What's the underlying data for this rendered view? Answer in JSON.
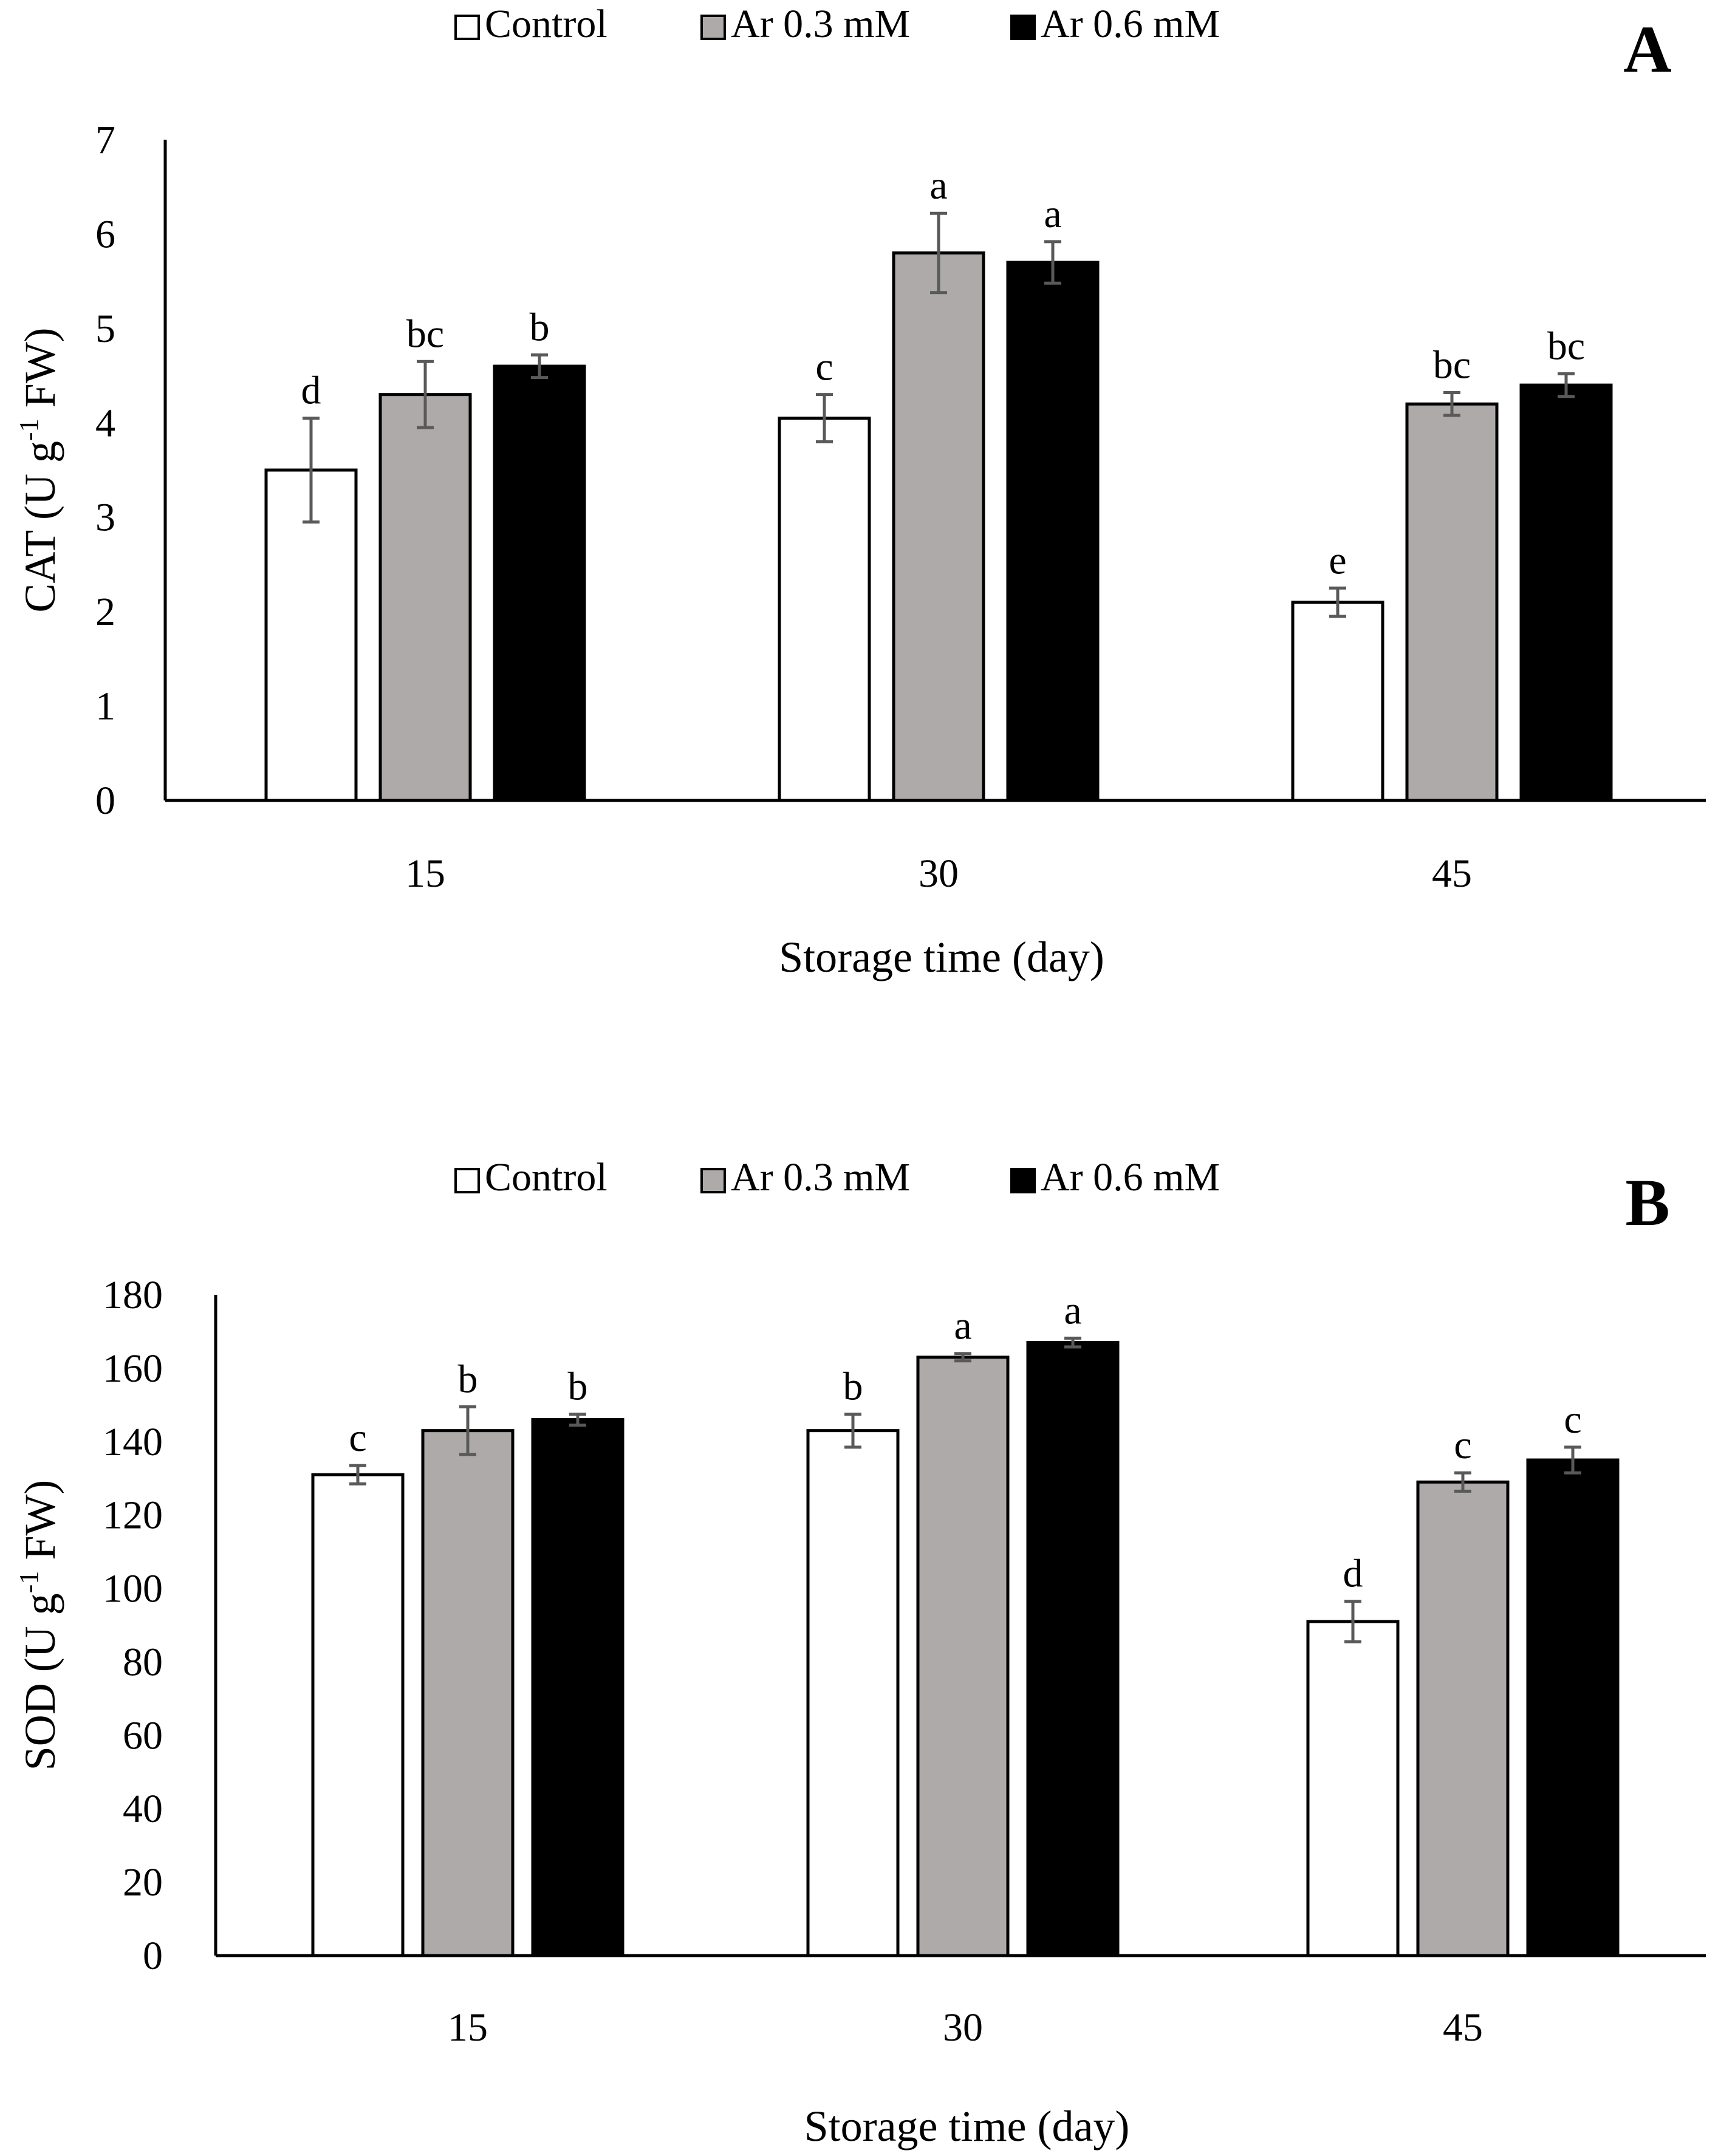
{
  "chart_data": [
    {
      "panel": "A",
      "type": "bar",
      "legend": [
        "Control",
        "Ar 0.3 mM",
        "Ar 0.6 mM"
      ],
      "legend_position": "top-center",
      "categories": [
        "15",
        "30",
        "45"
      ],
      "xlabel": "Storage time (day)",
      "ylabel_main": "CAT (U g",
      "ylabel_sup": "-1",
      "ylabel_end": " FW)",
      "ylim": [
        0,
        7
      ],
      "ytick_values": [
        0,
        1,
        2,
        3,
        4,
        5,
        6,
        7
      ],
      "ytick_labels": [
        "0",
        "1",
        "2",
        "3",
        "4",
        "5",
        "6",
        "7"
      ],
      "series": [
        {
          "name": "Control",
          "color": "#ffffff",
          "values": [
            3.5,
            4.05,
            2.1
          ],
          "errors": [
            0.55,
            0.25,
            0.15
          ],
          "letters": [
            "d",
            "c",
            "e"
          ]
        },
        {
          "name": "Ar 0.3 mM",
          "color": "#aeaaaa",
          "values": [
            4.3,
            5.8,
            4.2
          ],
          "errors": [
            0.35,
            0.42,
            0.12
          ],
          "letters": [
            "bc",
            "a",
            "bc"
          ]
        },
        {
          "name": "Ar 0.6 mM",
          "color": "#000000",
          "values": [
            4.6,
            5.7,
            4.4
          ],
          "errors": [
            0.12,
            0.22,
            0.12
          ],
          "letters": [
            "b",
            "a",
            "bc"
          ]
        }
      ]
    },
    {
      "panel": "B",
      "type": "bar",
      "legend": [
        "Control",
        "Ar 0.3 mM",
        "Ar 0.6 mM"
      ],
      "legend_position": "top-center",
      "categories": [
        "15",
        "30",
        "45"
      ],
      "xlabel": "Storage time (day)",
      "ylabel_main": "SOD (U g",
      "ylabel_sup": "-1",
      "ylabel_end": " FW)",
      "ylim": [
        0,
        180
      ],
      "ytick_values": [
        0,
        20,
        40,
        60,
        80,
        100,
        120,
        140,
        160,
        180
      ],
      "ytick_labels": [
        "0",
        "20",
        "40",
        "60",
        "80",
        "100",
        "120",
        "140",
        "160",
        "180"
      ],
      "series": [
        {
          "name": "Control",
          "color": "#ffffff",
          "values": [
            131,
            143,
            91
          ],
          "errors": [
            2.5,
            4.5,
            5.5
          ],
          "letters": [
            "c",
            "b",
            "d"
          ]
        },
        {
          "name": "Ar 0.3 mM",
          "color": "#aeaaaa",
          "values": [
            143,
            163,
            129
          ],
          "errors": [
            6.5,
            1.0,
            2.5
          ],
          "letters": [
            "b",
            "a",
            "c"
          ]
        },
        {
          "name": "Ar 0.6 mM",
          "color": "#000000",
          "values": [
            146,
            167,
            135
          ],
          "errors": [
            1.5,
            1.2,
            3.5
          ],
          "letters": [
            "b",
            "a",
            "c"
          ]
        }
      ]
    }
  ],
  "style": {
    "error_bar_color": "#595959",
    "axis_color": "#000000",
    "bar_stroke": "#000000"
  }
}
